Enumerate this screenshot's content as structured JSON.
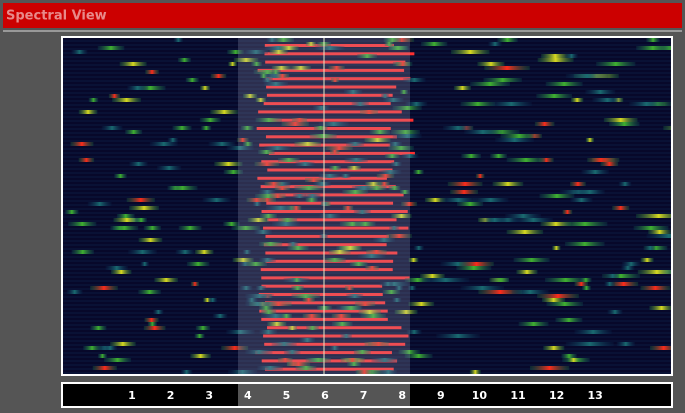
{
  "header": {
    "title": "Spectral View"
  },
  "axis": {
    "labels": [
      "1",
      "2",
      "3",
      "4",
      "5",
      "6",
      "7",
      "8",
      "9",
      "10",
      "11",
      "12",
      "13"
    ],
    "highlighted": "6"
  }
}
